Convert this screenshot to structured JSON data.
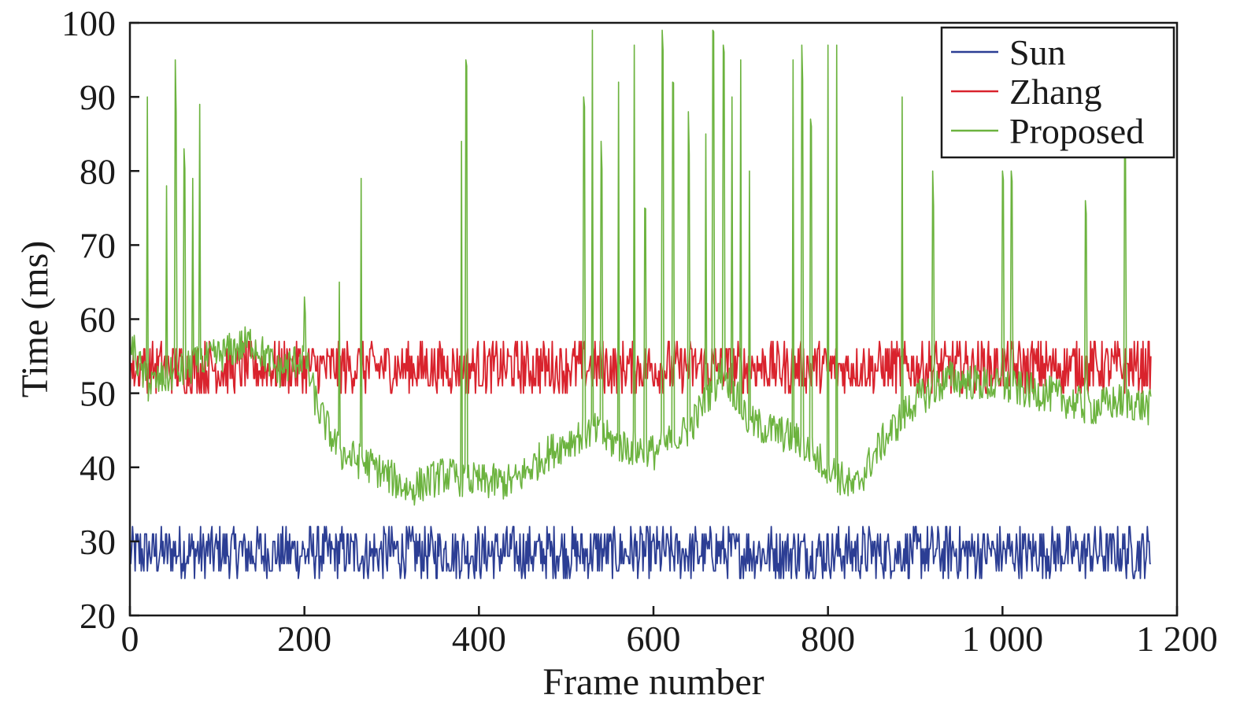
{
  "chart_data": {
    "type": "line",
    "title": "",
    "xlabel": "Frame number",
    "ylabel": "Time (ms)",
    "xlim": [
      0,
      1200
    ],
    "ylim": [
      20,
      100
    ],
    "x_ticks": [
      0,
      200,
      400,
      600,
      800,
      1000,
      1200
    ],
    "x_tick_labels": [
      "0",
      "200",
      "400",
      "600",
      "800",
      "1 000",
      "1 200"
    ],
    "y_ticks": [
      20,
      30,
      40,
      50,
      60,
      70,
      80,
      90,
      100
    ],
    "y_tick_labels": [
      "20",
      "30",
      "40",
      "50",
      "60",
      "70",
      "80",
      "90",
      "100"
    ],
    "grid": false,
    "legend_position": "top-right",
    "frames": 1170,
    "series": [
      {
        "name": "Sun",
        "color": "#2c3e94",
        "range": [
          25,
          32
        ]
      },
      {
        "name": "Zhang",
        "color": "#d9232d",
        "range": [
          50,
          57
        ]
      },
      {
        "name": "Proposed",
        "color": "#6cb33f",
        "baseline": [
          [
            0,
            57
          ],
          [
            20,
            51
          ],
          [
            60,
            53
          ],
          [
            100,
            55
          ],
          [
            140,
            57
          ],
          [
            170,
            53
          ],
          [
            200,
            55
          ],
          [
            215,
            48
          ],
          [
            240,
            42
          ],
          [
            280,
            40
          ],
          [
            320,
            37
          ],
          [
            360,
            39
          ],
          [
            400,
            38
          ],
          [
            440,
            38
          ],
          [
            480,
            42
          ],
          [
            510,
            44
          ],
          [
            530,
            45
          ],
          [
            560,
            43
          ],
          [
            600,
            42
          ],
          [
            640,
            45
          ],
          [
            680,
            53
          ],
          [
            710,
            46
          ],
          [
            760,
            44
          ],
          [
            800,
            40
          ],
          [
            830,
            37
          ],
          [
            860,
            43
          ],
          [
            900,
            49
          ],
          [
            940,
            52
          ],
          [
            990,
            51
          ],
          [
            1050,
            50
          ],
          [
            1100,
            48
          ],
          [
            1140,
            49
          ],
          [
            1170,
            48
          ]
        ],
        "spikes": [
          [
            20,
            90
          ],
          [
            42,
            78
          ],
          [
            52,
            95
          ],
          [
            62,
            83
          ],
          [
            72,
            79
          ],
          [
            80,
            89
          ],
          [
            200,
            63
          ],
          [
            240,
            65
          ],
          [
            265,
            79
          ],
          [
            380,
            84
          ],
          [
            385,
            95
          ],
          [
            520,
            90
          ],
          [
            530,
            99
          ],
          [
            540,
            84
          ],
          [
            560,
            92
          ],
          [
            578,
            97
          ],
          [
            590,
            75
          ],
          [
            610,
            99
          ],
          [
            622,
            92
          ],
          [
            640,
            88
          ],
          [
            660,
            85
          ],
          [
            668,
            99
          ],
          [
            680,
            97
          ],
          [
            690,
            90
          ],
          [
            700,
            95
          ],
          [
            710,
            80
          ],
          [
            760,
            95
          ],
          [
            770,
            97
          ],
          [
            780,
            87
          ],
          [
            800,
            97
          ],
          [
            810,
            97
          ],
          [
            885,
            90
          ],
          [
            920,
            80
          ],
          [
            1000,
            80
          ],
          [
            1010,
            80
          ],
          [
            1095,
            76
          ],
          [
            1140,
            85
          ]
        ]
      }
    ]
  }
}
